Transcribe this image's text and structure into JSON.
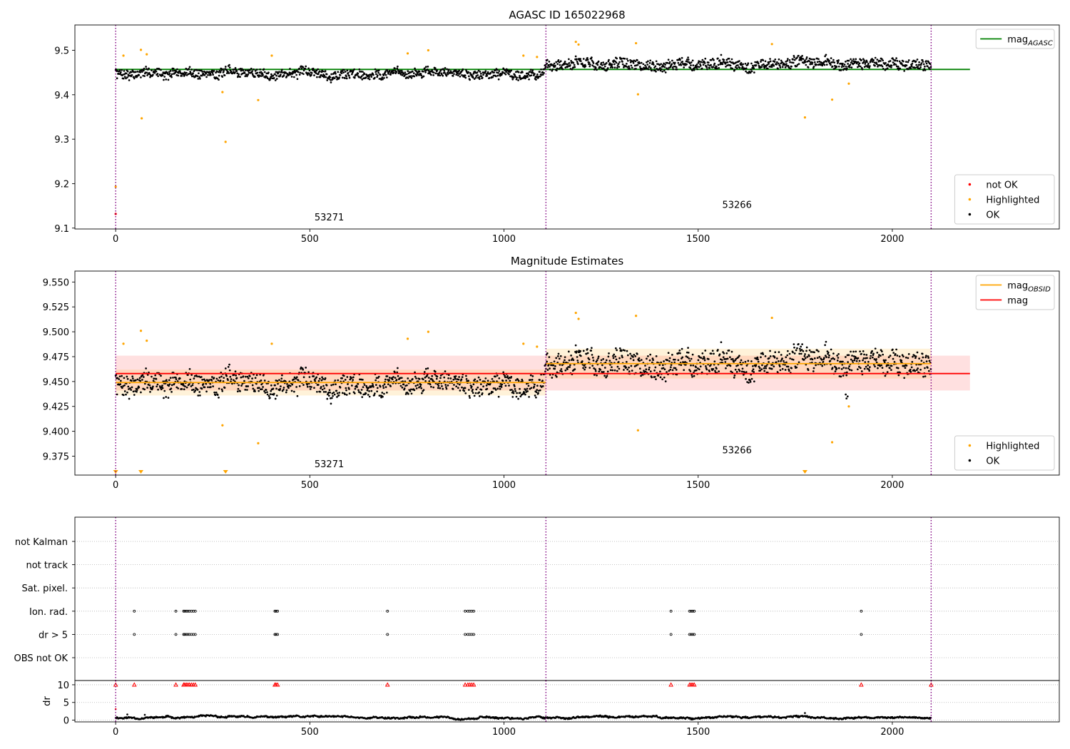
{
  "chart_data": [
    {
      "type": "scatter",
      "title": "AGASC ID 165022968",
      "xlim": [
        -105,
        2430
      ],
      "ylim": [
        9.098,
        9.557
      ],
      "xticks": [
        0,
        500,
        1000,
        1500,
        2000
      ],
      "yticks": [
        9.1,
        9.2,
        9.3,
        9.4,
        9.5
      ],
      "ytick_decimals": 1,
      "obs_boundaries": [
        0,
        1108,
        2100
      ],
      "obs_labels": [
        {
          "text": "53271",
          "x": 550,
          "y": 9.117
        },
        {
          "text": "53266",
          "x": 1600,
          "y": 9.145
        }
      ],
      "hlines": [
        {
          "name": "mag_AGASC",
          "y": 9.457,
          "x": [
            0,
            2200
          ],
          "color": "#008000"
        }
      ],
      "ok_bands": [
        {
          "x": [
            0,
            1108
          ],
          "center": 9.449,
          "noise": 0.014,
          "outlier_x": [],
          "outlier_y": []
        },
        {
          "x": [
            1108,
            2100
          ],
          "center": 9.468,
          "noise": 0.016,
          "outlier_x": [],
          "outlier_y": []
        }
      ],
      "highlighted": {
        "color": "#ffa500",
        "points": [
          [
            0,
            9.193
          ],
          [
            20,
            9.488
          ],
          [
            65,
            9.501
          ],
          [
            67,
            9.347
          ],
          [
            80,
            9.491
          ],
          [
            275,
            9.406
          ],
          [
            283,
            9.294
          ],
          [
            367,
            9.388
          ],
          [
            402,
            9.488
          ],
          [
            752,
            9.493
          ],
          [
            805,
            9.5
          ],
          [
            1050,
            9.488
          ],
          [
            1085,
            9.485
          ],
          [
            1185,
            9.519
          ],
          [
            1192,
            9.513
          ],
          [
            1340,
            9.516
          ],
          [
            1345,
            9.401
          ],
          [
            1690,
            9.514
          ],
          [
            1775,
            9.349
          ],
          [
            1845,
            9.389
          ],
          [
            1888,
            9.425
          ]
        ]
      },
      "not_ok": {
        "color": "#ff0000",
        "points": [
          [
            0,
            9.132
          ]
        ]
      },
      "legends": [
        {
          "position": "upper right",
          "entries": [
            {
              "label": "mag",
              "sub": "AGASC",
              "kind": "line",
              "color": "#008000"
            }
          ]
        },
        {
          "position": "lower right",
          "entries": [
            {
              "label": "not OK",
              "kind": "dot",
              "color": "#ff0000"
            },
            {
              "label": "Highlighted",
              "kind": "dot",
              "color": "#ffa500"
            },
            {
              "label": "OK",
              "kind": "dot",
              "color": "#000000"
            }
          ]
        }
      ]
    },
    {
      "type": "scatter",
      "title": "Magnitude Estimates",
      "xlim": [
        -105,
        2430
      ],
      "ylim": [
        9.356,
        9.561
      ],
      "xticks": [
        0,
        500,
        1000,
        1500,
        2000
      ],
      "yticks": [
        9.375,
        9.4,
        9.425,
        9.45,
        9.475,
        9.5,
        9.525,
        9.55
      ],
      "ytick_decimals": 3,
      "obs_boundaries": [
        0,
        1108,
        2100
      ],
      "obs_labels": [
        {
          "text": "53271",
          "x": 550,
          "y": 9.364
        },
        {
          "text": "53266",
          "x": 1600,
          "y": 9.378
        }
      ],
      "bands": [
        {
          "name": "mag range",
          "x": [
            0,
            2200
          ],
          "y": [
            9.441,
            9.476
          ],
          "color": "#ff0000",
          "opacity": 0.12
        },
        {
          "name": "mag_OBSID 53271 range",
          "x": [
            0,
            1108
          ],
          "y": [
            9.436,
            9.462
          ],
          "color": "#ffa500",
          "opacity": 0.15
        },
        {
          "name": "mag_OBSID 53266 range",
          "x": [
            1108,
            2100
          ],
          "y": [
            9.453,
            9.483
          ],
          "color": "#ffa500",
          "opacity": 0.15
        }
      ],
      "hlines": [
        {
          "name": "mag_OBSID",
          "y": 9.449,
          "x": [
            0,
            1108
          ],
          "color": "#ffa500"
        },
        {
          "name": "mag_OBSID",
          "y": 9.468,
          "x": [
            1108,
            2100
          ],
          "color": "#ffa500"
        },
        {
          "name": "mag",
          "y": 9.458,
          "x": [
            0,
            2200
          ],
          "color": "#ff0000"
        }
      ],
      "ok_bands": [
        {
          "x": [
            0,
            1108
          ],
          "center": 9.449,
          "noise": 0.014,
          "outlier_x": [],
          "outlier_y": []
        },
        {
          "x": [
            1108,
            2100
          ],
          "center": 9.468,
          "noise": 0.016,
          "outlier_x": [
            1880,
            1882,
            1885
          ],
          "outlier_y": [
            9.437,
            9.433,
            9.435
          ]
        }
      ],
      "highlighted": {
        "color": "#ffa500",
        "points": [
          [
            20,
            9.488
          ],
          [
            65,
            9.501
          ],
          [
            80,
            9.491
          ],
          [
            275,
            9.406
          ],
          [
            367,
            9.388
          ],
          [
            402,
            9.488
          ],
          [
            752,
            9.493
          ],
          [
            805,
            9.5
          ],
          [
            1050,
            9.488
          ],
          [
            1085,
            9.485
          ],
          [
            1185,
            9.519
          ],
          [
            1192,
            9.513
          ],
          [
            1340,
            9.516
          ],
          [
            1345,
            9.401
          ],
          [
            1690,
            9.514
          ],
          [
            1845,
            9.389
          ],
          [
            1888,
            9.425
          ]
        ]
      },
      "clipped_markers": {
        "color": "#ffa500",
        "x": [
          0,
          65,
          283,
          1775
        ]
      },
      "legends": [
        {
          "position": "upper right",
          "entries": [
            {
              "label": "mag",
              "sub": "OBSID",
              "kind": "line",
              "color": "#ffa500"
            },
            {
              "label": "mag",
              "kind": "line",
              "color": "#ff0000"
            }
          ]
        },
        {
          "position": "lower right",
          "entries": [
            {
              "label": "Highlighted",
              "kind": "dot",
              "color": "#ffa500"
            },
            {
              "label": "OK",
              "kind": "dot",
              "color": "#000000"
            }
          ]
        }
      ]
    },
    {
      "type": "scatter",
      "title": "",
      "xlim": [
        -105,
        2430
      ],
      "obs_boundaries": [
        0,
        1108,
        2100
      ],
      "flag_rows": [
        "not Kalman",
        "not track",
        "Sat. pixel.",
        "Ion. rad.",
        "dr > 5",
        "OBS not OK"
      ],
      "flag_points": {
        "Ion. rad.": [
          48,
          155,
          175,
          178,
          182,
          186,
          190,
          195,
          200,
          205,
          410,
          413,
          417,
          700,
          900,
          907,
          912,
          917,
          922,
          1430,
          1478,
          1482,
          1486,
          1490,
          1920
        ],
        "dr > 5": [
          48,
          155,
          175,
          178,
          182,
          186,
          190,
          195,
          200,
          205,
          410,
          413,
          417,
          700,
          900,
          907,
          912,
          917,
          922,
          1430,
          1478,
          1482,
          1486,
          1490,
          1920
        ]
      }
    },
    {
      "type": "scatter",
      "title": "",
      "ylabel": "dr",
      "xlim": [
        -105,
        2430
      ],
      "ylim": [
        -0.5,
        11.2
      ],
      "xticks": [
        0,
        500,
        1000,
        1500,
        2000
      ],
      "yticks": [
        0,
        5,
        10
      ],
      "obs_boundaries": [
        0,
        1108,
        2100
      ],
      "clipped_marker_y": 10,
      "clipped_x": [
        0,
        48,
        155,
        175,
        178,
        182,
        186,
        190,
        195,
        200,
        205,
        410,
        413,
        417,
        700,
        900,
        907,
        912,
        917,
        922,
        1430,
        1478,
        1482,
        1486,
        1490,
        1920,
        2100
      ],
      "dr_extra": [
        [
          0,
          3.1
        ],
        [
          30,
          1.6
        ],
        [
          75,
          1.5
        ],
        [
          1775,
          2.0
        ]
      ]
    }
  ]
}
